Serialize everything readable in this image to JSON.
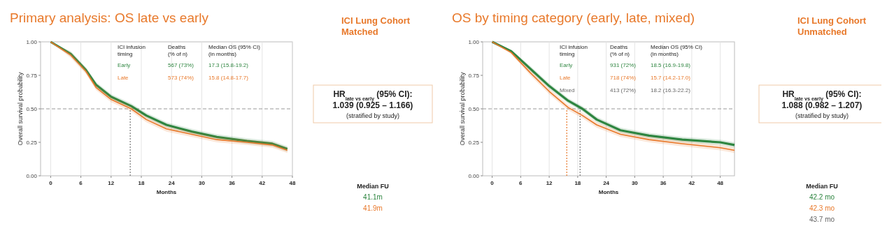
{
  "chart_data": [
    {
      "type": "line",
      "title": "Primary analysis: OS late vs early",
      "xlabel": "Months",
      "ylabel": "Overall survival probability",
      "x": [
        0,
        4,
        7,
        9,
        12,
        16,
        19,
        23,
        28,
        33,
        39,
        44,
        47
      ],
      "xlim": [
        -2,
        48
      ],
      "xticks": [
        0,
        6,
        12,
        18,
        24,
        30,
        36,
        42,
        48
      ],
      "ylim": [
        0,
        1
      ],
      "yticks": [
        {
          "value": 0,
          "label": "0.00"
        },
        {
          "value": 0.25,
          "label": "0.25"
        },
        {
          "value": 0.5,
          "label": "0.50"
        },
        {
          "value": 0.75,
          "label": "0.75"
        },
        {
          "value": 1,
          "label": "1.00"
        }
      ],
      "grid": "x",
      "series": [
        {
          "name": "Early",
          "color": "#2e8540",
          "values": [
            1,
            0.91,
            0.79,
            0.68,
            0.59,
            0.52,
            0.45,
            0.38,
            0.33,
            0.29,
            0.26,
            0.24,
            0.2
          ],
          "lower": [
            1,
            0.89,
            0.77,
            0.66,
            0.57,
            0.5,
            0.43,
            0.36,
            0.31,
            0.27,
            0.24,
            0.22,
            0.18
          ],
          "upper": [
            1,
            0.93,
            0.81,
            0.7,
            0.61,
            0.54,
            0.47,
            0.4,
            0.35,
            0.31,
            0.28,
            0.26,
            0.22
          ]
        },
        {
          "name": "Late",
          "color": "#e8792b",
          "values": [
            1,
            0.9,
            0.78,
            0.66,
            0.57,
            0.5,
            0.42,
            0.35,
            0.31,
            0.27,
            0.25,
            0.23,
            0.19
          ],
          "lower": [
            1,
            0.88,
            0.76,
            0.64,
            0.55,
            0.48,
            0.4,
            0.33,
            0.29,
            0.25,
            0.23,
            0.21,
            0.17
          ],
          "upper": [
            1,
            0.92,
            0.8,
            0.68,
            0.59,
            0.52,
            0.44,
            0.37,
            0.33,
            0.29,
            0.27,
            0.25,
            0.21
          ]
        }
      ],
      "ref_lines": [
        {
          "axis": "y",
          "value": 0.5,
          "color": "#999999",
          "line_style": "dashed"
        },
        {
          "axis": "x",
          "value": 15.8,
          "color": "#777777",
          "line_style": "dotted"
        }
      ],
      "annotations": [
        "ICI infusion timing",
        "Deaths (% of n)",
        "Median OS (95% CI) (in months)",
        "567 (73%)",
        "17.3 (15.8-19.2)",
        "573 (74%)",
        "15.8 (14.8-17.7)",
        "ICI Lung Cohort Matched",
        "HR$_{late vs early}$ (95% CI):",
        "1.039 (0.925 – 1.166)",
        "(stratified by study)",
        "Median FU",
        "41.1m",
        "41.9m"
      ]
    },
    {
      "type": "line",
      "title": "OS by timing category (early, late, mixed)",
      "xlabel": "Months",
      "ylabel": "Overall survival probability",
      "x": [
        0,
        4,
        8,
        12,
        16,
        19,
        22,
        27,
        33,
        40,
        48,
        51
      ],
      "xlim": [
        -2,
        51
      ],
      "xticks": [
        0,
        6,
        12,
        18,
        24,
        30,
        36,
        42,
        48
      ],
      "ylim": [
        0,
        1
      ],
      "yticks": [
        {
          "value": 0,
          "label": "0.00"
        },
        {
          "value": 0.25,
          "label": "0.25"
        },
        {
          "value": 0.5,
          "label": "0.50"
        },
        {
          "value": 0.75,
          "label": "0.75"
        },
        {
          "value": 1,
          "label": "1.00"
        }
      ],
      "grid": "x",
      "series": [
        {
          "name": "Early",
          "color": "#2e8540",
          "values": [
            1,
            0.93,
            0.8,
            0.67,
            0.56,
            0.5,
            0.42,
            0.34,
            0.3,
            0.27,
            0.25,
            0.23
          ],
          "lower": [
            1,
            0.92,
            0.78,
            0.65,
            0.54,
            0.48,
            0.4,
            0.32,
            0.28,
            0.25,
            0.23,
            0.21
          ],
          "upper": [
            1,
            0.94,
            0.82,
            0.69,
            0.58,
            0.52,
            0.44,
            0.36,
            0.32,
            0.29,
            0.27,
            0.25
          ]
        },
        {
          "name": "Late",
          "color": "#e8792b",
          "values": [
            1,
            0.92,
            0.77,
            0.63,
            0.51,
            0.45,
            0.38,
            0.31,
            0.27,
            0.24,
            0.21,
            0.19
          ],
          "lower": [
            1,
            0.91,
            0.75,
            0.61,
            0.49,
            0.43,
            0.36,
            0.29,
            0.25,
            0.22,
            0.19,
            0.17
          ],
          "upper": [
            1,
            0.93,
            0.79,
            0.65,
            0.53,
            0.47,
            0.4,
            0.33,
            0.29,
            0.26,
            0.23,
            0.21
          ]
        }
      ],
      "ref_lines": [
        {
          "axis": "y",
          "value": 0.5,
          "color": "#999999",
          "line_style": "dashed"
        },
        {
          "axis": "x",
          "value": 15.7,
          "color": "#e8792b",
          "line_style": "dotted"
        },
        {
          "axis": "x",
          "value": 18.5,
          "color": "#777777",
          "line_style": "dotted"
        }
      ],
      "annotations": [
        "ICI infusion timing",
        "Deaths (% of n)",
        "Median OS (95% CI) (in months)",
        "931 (72%)",
        "18.5 (16.9-19.8)",
        "718 (74%)",
        "15.7 (14.2-17.0)",
        "Mixed",
        "413 (72%)",
        "18.2 (16.3-22.2)",
        "ICI Lung Cohort Unmatched",
        "HR$_{late vs early}$ (95% CI):",
        "1.088 (0.982 – 1.207)",
        "(stratified by study)",
        "Median FU",
        "42.2 mo",
        "42.3 mo",
        "43.7 mo"
      ]
    }
  ]
}
